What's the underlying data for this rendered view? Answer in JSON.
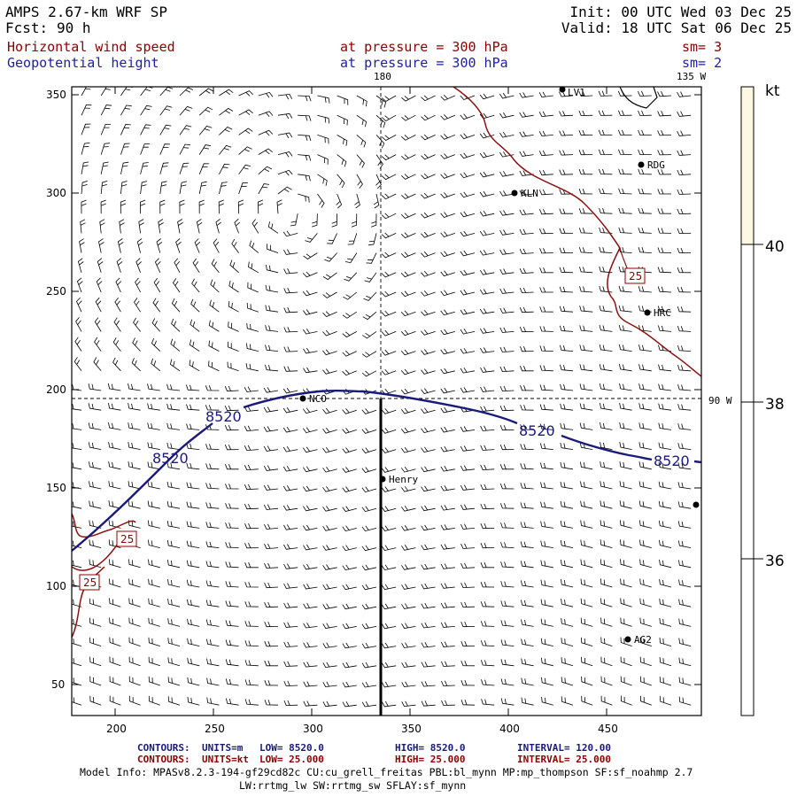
{
  "header": {
    "title": "AMPS 2.67-km WRF SP",
    "fcst_label": "Fcst:",
    "fcst_value": "90 h",
    "init": "Init: 00 UTC Wed 03 Dec 25",
    "valid": "Valid: 18 UTC Sat 06 Dec 25",
    "field1": "Horizontal wind speed",
    "field1_level": "at pressure =  300 hPa",
    "field1_sm": "sm= 3",
    "field2": "Geopotential height",
    "field2_level": "at pressure =  300 hPa",
    "field2_sm": "sm= 2"
  },
  "map": {
    "meridian_180": "180",
    "meridian_135w": "135 W",
    "meridian_90w": "90 W",
    "x_ticks": [
      "200",
      "250",
      "300",
      "350",
      "400",
      "450"
    ],
    "y_ticks": [
      "350",
      "300",
      "250",
      "200",
      "150",
      "100",
      "50"
    ],
    "height_contour_label": "8520",
    "speed_contour_label": "25",
    "stations": [
      "RDG",
      "KLN",
      "HRC",
      "NCO",
      "Henry",
      "AG2",
      "LV1"
    ]
  },
  "colorbar": {
    "unit": "kt",
    "ticks": [
      "40",
      "38",
      "36"
    ],
    "fill_color": "#fdf8e3"
  },
  "colors": {
    "height_contour": "#1a1a7a",
    "speed_contour": "#8b0000",
    "barbs": "#000000"
  },
  "footer": {
    "line1_contours": "CONTOURS:",
    "line1_units": "UNITS=m",
    "line1_low": "LOW=   8520.0",
    "line1_high": "HIGH=  8520.0",
    "line1_interval": "INTERVAL=    120.00",
    "line2_contours": "CONTOURS:",
    "line2_units": "UNITS=kt",
    "line2_low": "LOW=   25.000",
    "line2_high": "HIGH=  25.000",
    "line2_interval": "INTERVAL=    25.000",
    "model_info": "Model Info: MPASv8.2.3-194-gf29cd82c CU:cu_grell_freitas PBL:bl_mynn MP:mp_thompson SF:sf_noahmp 2.7",
    "model_info2": "LW:rrtmg_lw SW:rrtmg_sw SFLAY:sf_mynn"
  }
}
